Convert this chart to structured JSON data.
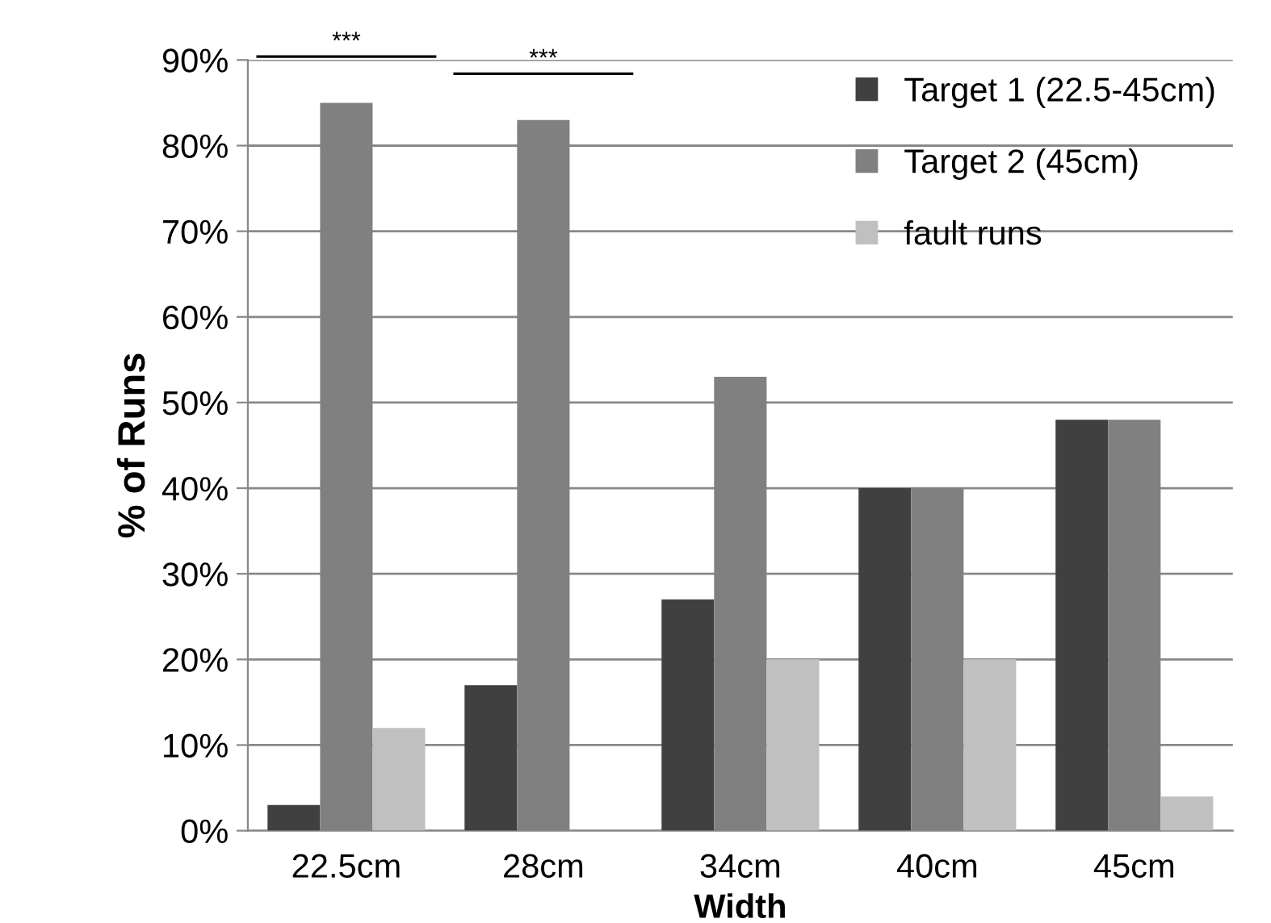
{
  "chart_data": {
    "type": "bar",
    "xlabel": "Width",
    "ylabel": "% of Runs",
    "categories": [
      "22.5cm",
      "28cm",
      "34cm",
      "40cm",
      "45cm"
    ],
    "series": [
      {
        "name": "Target 1 (22.5-45cm)",
        "color": "#404040",
        "values": [
          3,
          17,
          27,
          40,
          48
        ]
      },
      {
        "name": "Target 2 (45cm)",
        "color": "#808080",
        "values": [
          85,
          83,
          53,
          40,
          48
        ]
      },
      {
        "name": "fault runs",
        "color": "#c0c0c0",
        "values": [
          12,
          0,
          20,
          20,
          4
        ]
      }
    ],
    "ylim": [
      0,
      90
    ],
    "yticks": [
      {
        "value": 0,
        "label": "0%"
      },
      {
        "value": 10,
        "label": "10%"
      },
      {
        "value": 20,
        "label": "20%"
      },
      {
        "value": 30,
        "label": "30%"
      },
      {
        "value": 40,
        "label": "40%"
      },
      {
        "value": 50,
        "label": "50%"
      },
      {
        "value": 60,
        "label": "60%"
      },
      {
        "value": 70,
        "label": "70%"
      },
      {
        "value": 80,
        "label": "80%"
      },
      {
        "value": 90,
        "label": "90%"
      }
    ],
    "grid": "y",
    "legend": "top right",
    "annotations": [
      "***",
      "***"
    ]
  }
}
